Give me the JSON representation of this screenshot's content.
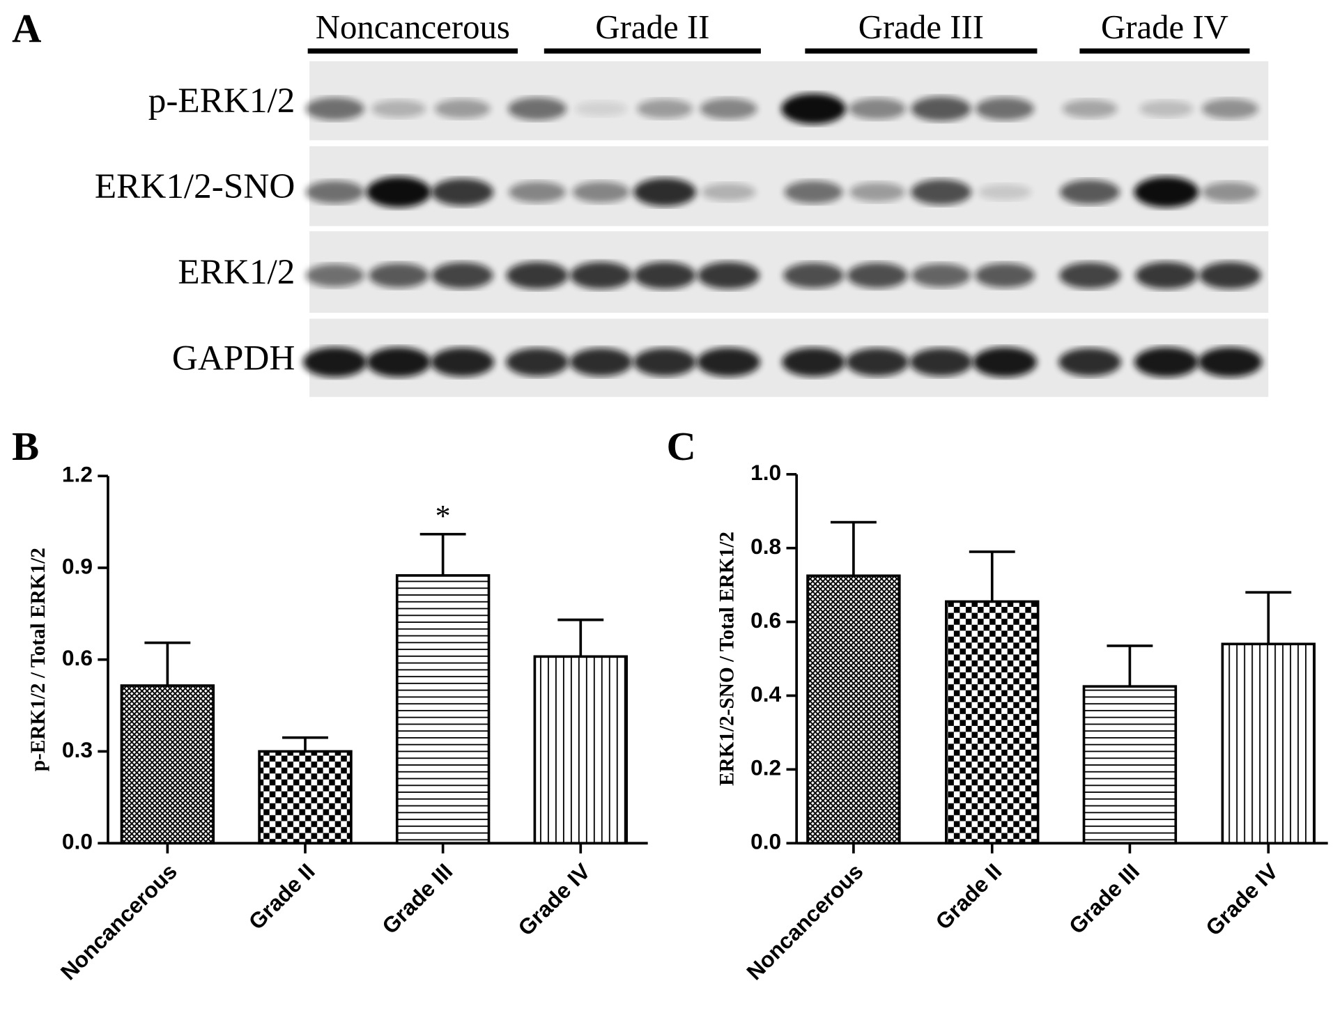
{
  "blot": {
    "panel_label": "A",
    "groups": [
      "Noncancerous",
      "Grade II",
      "Grade III",
      "Grade IV"
    ],
    "rows": [
      "p-ERK1/2",
      "ERK1/2-SNO",
      "ERK1/2",
      "GAPDH"
    ]
  },
  "chart_data": [
    {
      "type": "bar",
      "panel_label": "B",
      "y_label": "p-ERK1/2 / Total ERK1/2",
      "categories": [
        "Noncancerous",
        "Grade II",
        "Grade III",
        "Grade IV"
      ],
      "values": [
        0.515,
        0.3,
        0.875,
        0.61
      ],
      "errors": [
        0.14,
        0.045,
        0.135,
        0.12
      ],
      "annotations": [
        null,
        null,
        "*",
        null
      ],
      "patterns": [
        "crosshatch",
        "checker",
        "horizontal",
        "vertical"
      ],
      "color": "#000000",
      "ylim": [
        0,
        1.2
      ],
      "yticks": [
        {
          "value": 0,
          "label": "0.0"
        },
        0.3,
        0.6,
        0.9,
        1.2
      ]
    },
    {
      "type": "bar",
      "panel_label": "C",
      "y_label": "ERK1/2-SNO / Total ERK1/2",
      "categories": [
        "Noncancerous",
        "Grade II",
        "Grade III",
        "Grade IV"
      ],
      "values": [
        0.725,
        0.655,
        0.425,
        0.54
      ],
      "errors": [
        0.145,
        0.135,
        0.11,
        0.14
      ],
      "patterns": [
        "crosshatch",
        "checker",
        "horizontal",
        "vertical"
      ],
      "color": "#000000",
      "ylim": [
        0,
        1.0
      ],
      "yticks": [
        {
          "value": 0,
          "label": "0.0"
        },
        0.2,
        0.4,
        0.6,
        0.8,
        {
          "value": 1.0,
          "label": "1.0"
        }
      ]
    }
  ]
}
